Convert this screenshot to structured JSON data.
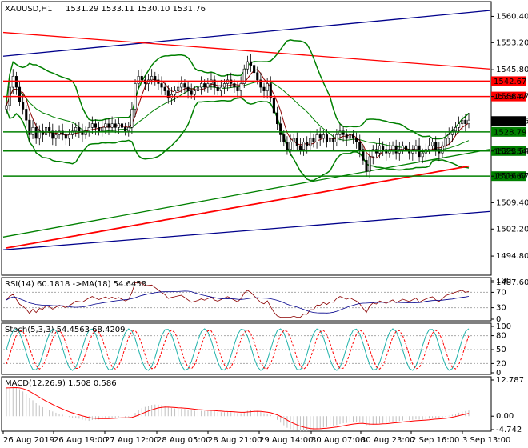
{
  "header": {
    "symbol": "XAUUSD,H1",
    "ohlc": "1531.29 1533.11 1530.10 1531.76"
  },
  "colors": {
    "candle_outline": "#000000",
    "bollinger": "#008000",
    "ma_short": "#8b0000",
    "ma_long_red": "#ff0000",
    "ma_long_green": "#008000",
    "trend_blue": "#00008b",
    "level_red": "#ff0000",
    "level_green": "#008000",
    "rsi_line": "#8b0000",
    "rsi_ma": "#00008b",
    "stoch_main": "#20b2aa",
    "stoch_signal": "#ff0000",
    "macd_hist": "#c0c0c0",
    "macd_signal": "#ff0000"
  },
  "chart_data": [
    {
      "type": "candlestick",
      "title": "XAUUSD,H1",
      "ylim": [
        1490,
        1564
      ],
      "yticks": [
        "1560.40",
        "1553.20",
        "1545.80",
        "1538.47",
        "1531.76",
        "1523.54",
        "1516.67",
        "1509.40",
        "1502.20",
        "1494.80",
        "1487.60"
      ],
      "levels": [
        {
          "label": "1542.67",
          "value": 1542.67,
          "color": "red"
        },
        {
          "label": "1538.47",
          "value": 1538.47,
          "color": "red"
        },
        {
          "label": "1531.76",
          "value": 1531.76,
          "color": "black"
        },
        {
          "label": "1528.79",
          "value": 1528.79,
          "color": "green"
        },
        {
          "label": "1523.54",
          "value": 1523.54,
          "color": "green"
        },
        {
          "label": "1516.67",
          "value": 1516.67,
          "color": "green"
        }
      ],
      "xticks": [
        "26 Aug 2019",
        "26 Aug 19:00",
        "27 Aug 12:00",
        "28 Aug 05:00",
        "28 Aug 21:00",
        "29 Aug 14:00",
        "30 Aug 07:00",
        "30 Aug 23:00",
        "2 Sep 16:00",
        "3 Sep 13:00"
      ],
      "close_series": [
        1536,
        1541,
        1544,
        1541,
        1537,
        1535,
        1532,
        1528,
        1530,
        1527,
        1529,
        1528,
        1530,
        1529,
        1527,
        1528,
        1529,
        1528,
        1527,
        1528,
        1529,
        1530,
        1529,
        1528,
        1529,
        1530,
        1531,
        1530,
        1529,
        1530,
        1531,
        1530,
        1531,
        1530,
        1531,
        1530,
        1529,
        1530,
        1535,
        1542,
        1544,
        1543,
        1542,
        1543,
        1544,
        1543,
        1542,
        1541,
        1540,
        1538,
        1539,
        1540,
        1541,
        1542,
        1541,
        1540,
        1539,
        1540,
        1541,
        1542,
        1541,
        1542,
        1543,
        1541,
        1540,
        1541,
        1542,
        1543,
        1542,
        1541,
        1540,
        1542,
        1546,
        1548,
        1547,
        1545,
        1543,
        1541,
        1540,
        1542,
        1538,
        1534,
        1531,
        1528,
        1526,
        1524,
        1526,
        1527,
        1525,
        1524,
        1526,
        1525,
        1527,
        1526,
        1528,
        1527,
        1528,
        1526,
        1527,
        1526,
        1528,
        1529,
        1528,
        1527,
        1528,
        1527,
        1526,
        1524,
        1521,
        1518,
        1522,
        1524,
        1523,
        1525,
        1524,
        1523,
        1524,
        1525,
        1523,
        1524,
        1525,
        1524,
        1523,
        1524,
        1525,
        1522,
        1523,
        1524,
        1525,
        1526,
        1524,
        1523,
        1525,
        1527,
        1528,
        1529,
        1530,
        1531,
        1532,
        1531,
        1532
      ]
    },
    {
      "type": "line",
      "title": "RSI(14) 60.1818 ->MA(18) 54.6458",
      "ylim": [
        0,
        100
      ],
      "yticks": [
        "100",
        "70",
        "30",
        "0"
      ]
    },
    {
      "type": "line",
      "title": "Stoch(5,3,3) 54.4563 68.4209",
      "ylim": [
        0,
        100
      ],
      "yticks": [
        "100",
        "80",
        "50",
        "20",
        "0"
      ]
    },
    {
      "type": "bar",
      "title": "MACD(12,26,9) 1.508 0.586",
      "ylim": [
        -4.742,
        12.787
      ],
      "yticks": [
        "12.787",
        "0.00",
        "-4.742"
      ]
    }
  ]
}
